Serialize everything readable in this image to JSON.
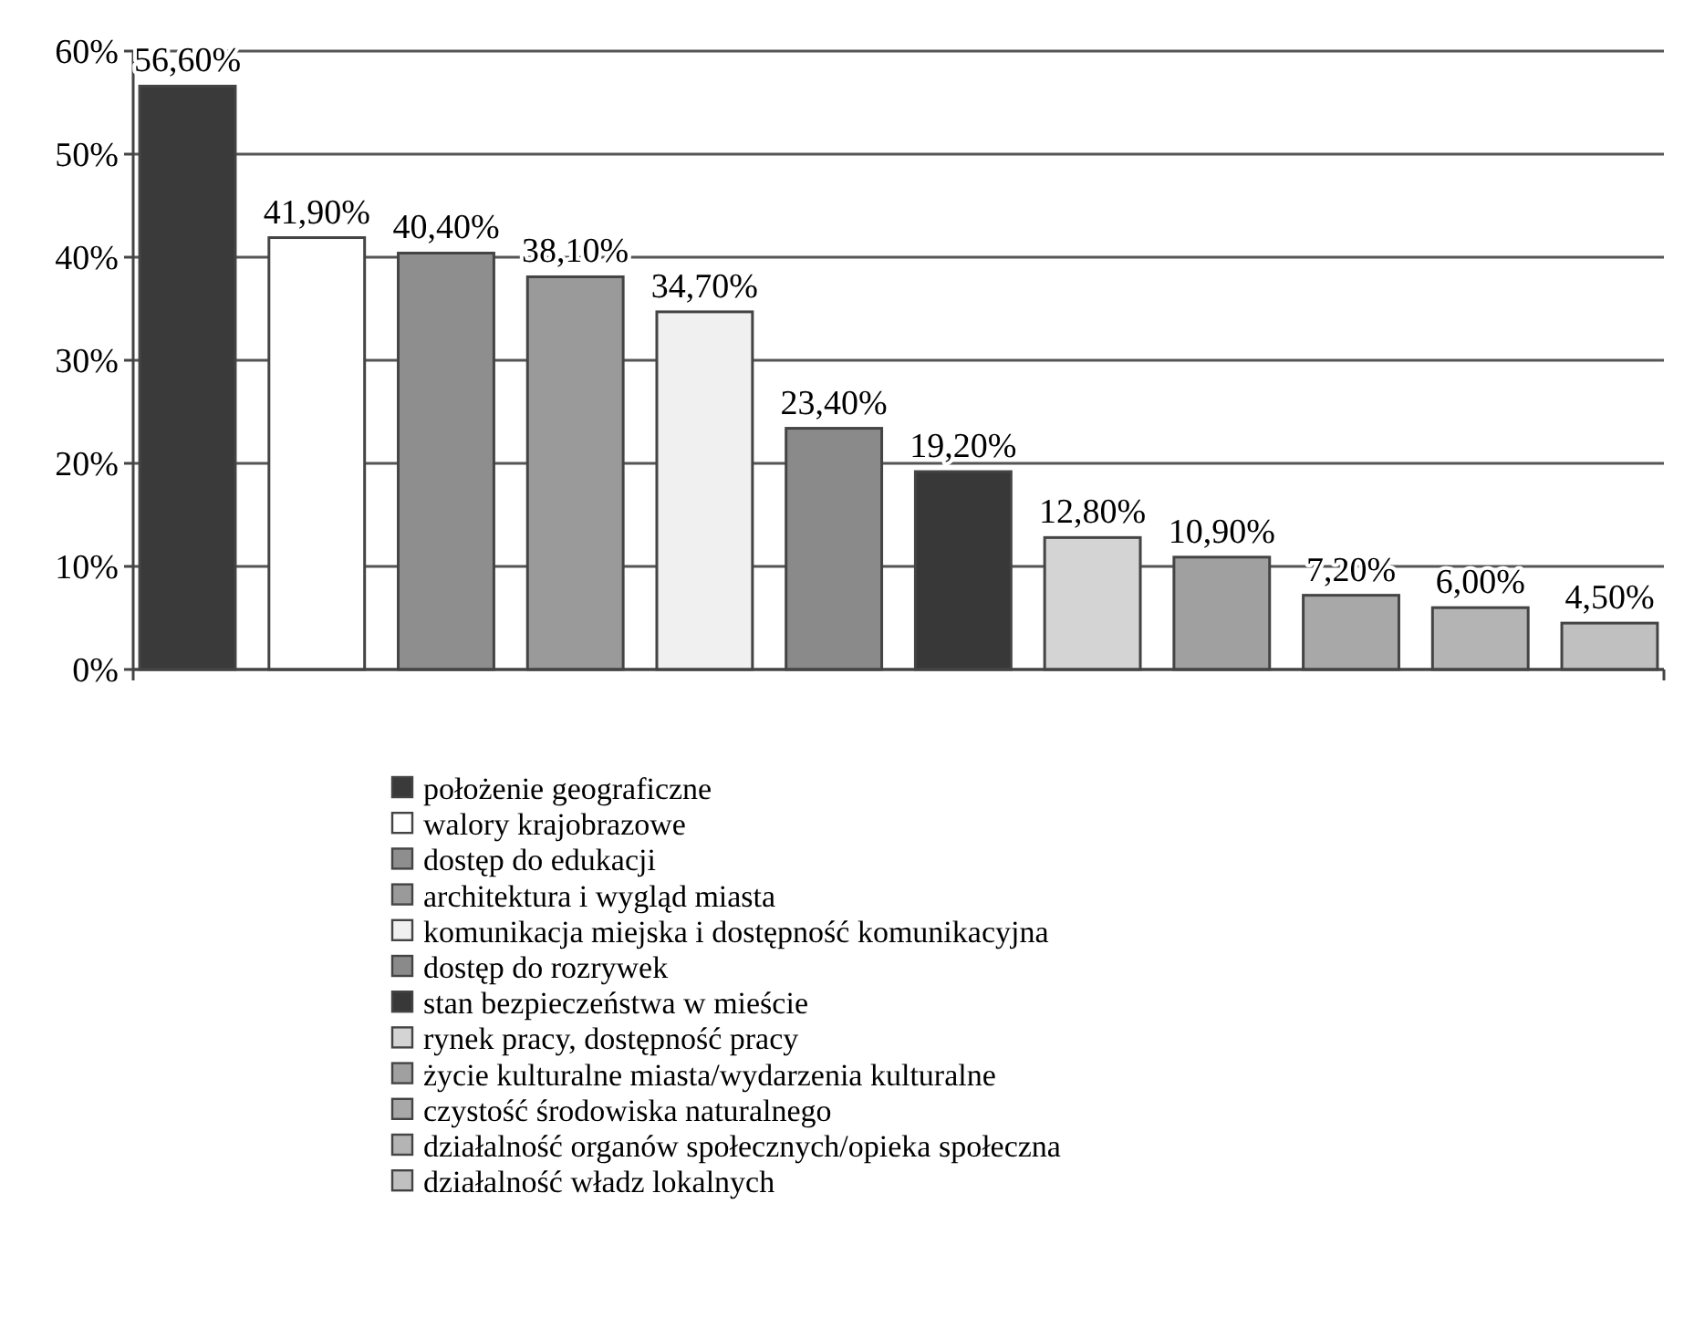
{
  "chart_data": {
    "type": "bar",
    "categories": [
      null,
      null,
      null,
      null,
      null,
      null,
      null,
      null,
      null,
      null,
      null,
      null
    ],
    "ylim": [
      0,
      60
    ],
    "yticks": [
      {
        "value": 0,
        "label": "0%"
      },
      {
        "value": 10,
        "label": "10%"
      },
      {
        "value": 20,
        "label": "20%"
      },
      {
        "value": 30,
        "label": "30%"
      },
      {
        "value": 40,
        "label": "40%"
      },
      {
        "value": 50,
        "label": "50%"
      },
      {
        "value": 60,
        "label": "60%"
      }
    ],
    "grid": "y",
    "legend": "bottom",
    "series": [
      {
        "name": "położenie geograficzne",
        "color": "#3a3a3a",
        "values": [
          56.6,
          null,
          null,
          null,
          null,
          null,
          null,
          null,
          null,
          null,
          null,
          null
        ],
        "value_labels": [
          "56,60%",
          null,
          null,
          null,
          null,
          null,
          null,
          null,
          null,
          null,
          null,
          null
        ]
      },
      {
        "name": "walory krajobrazowe",
        "color": "#ffffff",
        "values": [
          null,
          41.9,
          null,
          null,
          null,
          null,
          null,
          null,
          null,
          null,
          null,
          null
        ],
        "value_labels": [
          null,
          "41,90%",
          null,
          null,
          null,
          null,
          null,
          null,
          null,
          null,
          null,
          null
        ]
      },
      {
        "name": "dostęp do edukacji",
        "color": "#8e8e8e",
        "values": [
          null,
          null,
          40.4,
          null,
          null,
          null,
          null,
          null,
          null,
          null,
          null,
          null
        ],
        "value_labels": [
          null,
          null,
          "40,40%",
          null,
          null,
          null,
          null,
          null,
          null,
          null,
          null,
          null
        ]
      },
      {
        "name": "architektura i wygląd miasta",
        "color": "#9a9a9a",
        "values": [
          null,
          null,
          null,
          38.1,
          null,
          null,
          null,
          null,
          null,
          null,
          null,
          null
        ],
        "value_labels": [
          null,
          null,
          null,
          "38,10%",
          null,
          null,
          null,
          null,
          null,
          null,
          null,
          null
        ]
      },
      {
        "name": "komunikacja miejska i dostępność komunikacyjna",
        "color": "#f0f0f0",
        "values": [
          null,
          null,
          null,
          null,
          34.7,
          null,
          null,
          null,
          null,
          null,
          null,
          null
        ],
        "value_labels": [
          null,
          null,
          null,
          null,
          "34,70%",
          null,
          null,
          null,
          null,
          null,
          null,
          null
        ]
      },
      {
        "name": "dostęp do rozrywek",
        "color": "#8a8a8a",
        "values": [
          null,
          null,
          null,
          null,
          null,
          23.4,
          null,
          null,
          null,
          null,
          null,
          null
        ],
        "value_labels": [
          null,
          null,
          null,
          null,
          null,
          "23,40%",
          null,
          null,
          null,
          null,
          null,
          null
        ]
      },
      {
        "name": "stan bezpieczeństwa w mieście",
        "color": "#383838",
        "values": [
          null,
          null,
          null,
          null,
          null,
          null,
          19.2,
          null,
          null,
          null,
          null,
          null
        ],
        "value_labels": [
          null,
          null,
          null,
          null,
          null,
          null,
          "19,20%",
          null,
          null,
          null,
          null,
          null
        ]
      },
      {
        "name": "rynek pracy, dostępność pracy",
        "color": "#d4d4d4",
        "values": [
          null,
          null,
          null,
          null,
          null,
          null,
          null,
          12.8,
          null,
          null,
          null,
          null
        ],
        "value_labels": [
          null,
          null,
          null,
          null,
          null,
          null,
          null,
          "12,80%",
          null,
          null,
          null,
          null
        ]
      },
      {
        "name": "życie kulturalne miasta/wydarzenia kulturalne",
        "color": "#a0a0a0",
        "values": [
          null,
          null,
          null,
          null,
          null,
          null,
          null,
          null,
          10.9,
          null,
          null,
          null
        ],
        "value_labels": [
          null,
          null,
          null,
          null,
          null,
          null,
          null,
          null,
          "10,90%",
          null,
          null,
          null
        ]
      },
      {
        "name": "czystość środowiska naturalnego",
        "color": "#a8a8a8",
        "values": [
          null,
          null,
          null,
          null,
          null,
          null,
          null,
          null,
          null,
          7.2,
          null,
          null
        ],
        "value_labels": [
          null,
          null,
          null,
          null,
          null,
          null,
          null,
          null,
          null,
          "7,20%",
          null,
          null
        ]
      },
      {
        "name": "działalność organów społecznych/opieka społeczna",
        "color": "#b4b4b4",
        "values": [
          null,
          null,
          null,
          null,
          null,
          null,
          null,
          null,
          null,
          null,
          6.0,
          null
        ],
        "value_labels": [
          null,
          null,
          null,
          null,
          null,
          null,
          null,
          null,
          null,
          null,
          "6,00%",
          null
        ]
      },
      {
        "name": "działalność władz lokalnych",
        "color": "#c0c0c0",
        "values": [
          null,
          null,
          null,
          null,
          null,
          null,
          null,
          null,
          null,
          null,
          null,
          4.5
        ],
        "value_labels": [
          null,
          null,
          null,
          null,
          null,
          null,
          null,
          null,
          null,
          null,
          null,
          "4,50%"
        ]
      }
    ]
  }
}
